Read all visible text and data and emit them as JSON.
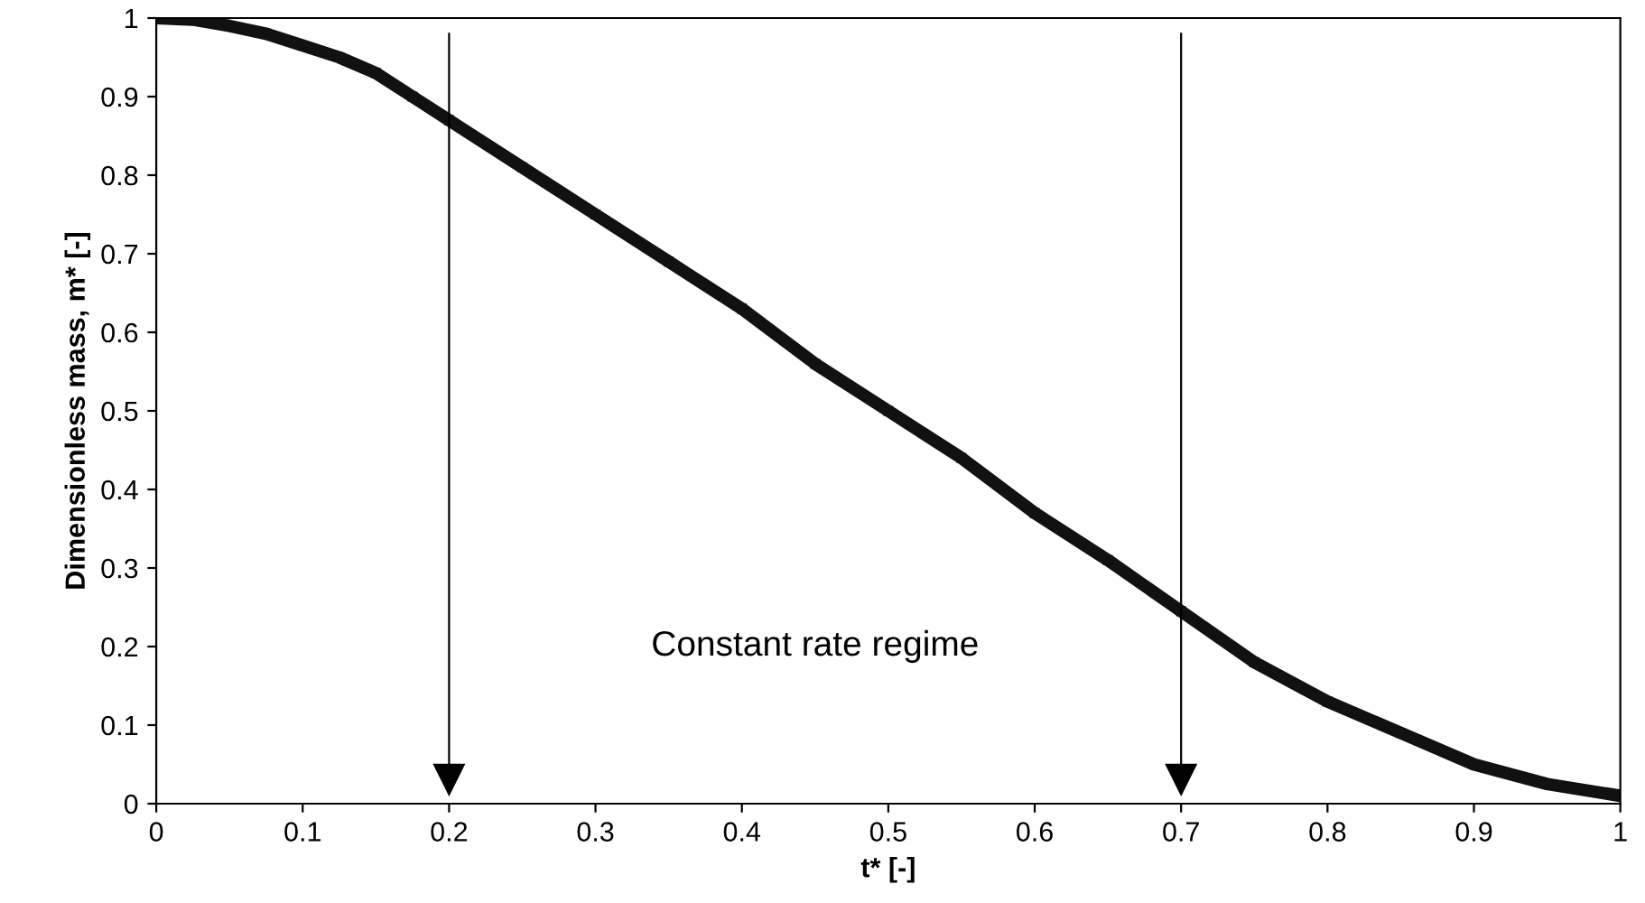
{
  "chart_data": {
    "type": "line",
    "xlabel": "t* [-]",
    "ylabel": "Dimensionless mass, m* [-]",
    "x": [
      0,
      0.025,
      0.05,
      0.075,
      0.1,
      0.125,
      0.15,
      0.175,
      0.2,
      0.25,
      0.3,
      0.35,
      0.4,
      0.45,
      0.5,
      0.55,
      0.6,
      0.65,
      0.7,
      0.75,
      0.8,
      0.85,
      0.9,
      0.95,
      1.0
    ],
    "series": [
      {
        "color": "#111111",
        "values": [
          1.0,
          0.998,
          0.99,
          0.98,
          0.965,
          0.95,
          0.93,
          0.9,
          0.87,
          0.81,
          0.75,
          0.69,
          0.63,
          0.56,
          0.5,
          0.44,
          0.37,
          0.31,
          0.245,
          0.18,
          0.13,
          0.09,
          0.05,
          0.025,
          0.01
        ]
      }
    ],
    "xlim": [
      0,
      1
    ],
    "ylim": [
      0,
      1
    ],
    "xticks": [
      0,
      0.1,
      0.2,
      0.3,
      0.4,
      0.5,
      0.6,
      0.7,
      0.8,
      0.9,
      1
    ],
    "yticks": [
      0,
      0.1,
      0.2,
      0.3,
      0.4,
      0.5,
      0.6,
      0.7,
      0.8,
      0.9,
      1
    ],
    "marker": "square",
    "line_style": "solid",
    "grid": false,
    "legend": false,
    "ref_lines": [
      {
        "axis": "x",
        "value": 0.2,
        "color": "#000000"
      },
      {
        "axis": "x",
        "value": 0.7,
        "color": "#000000"
      }
    ],
    "annotations": [
      "Constant rate regime"
    ]
  }
}
